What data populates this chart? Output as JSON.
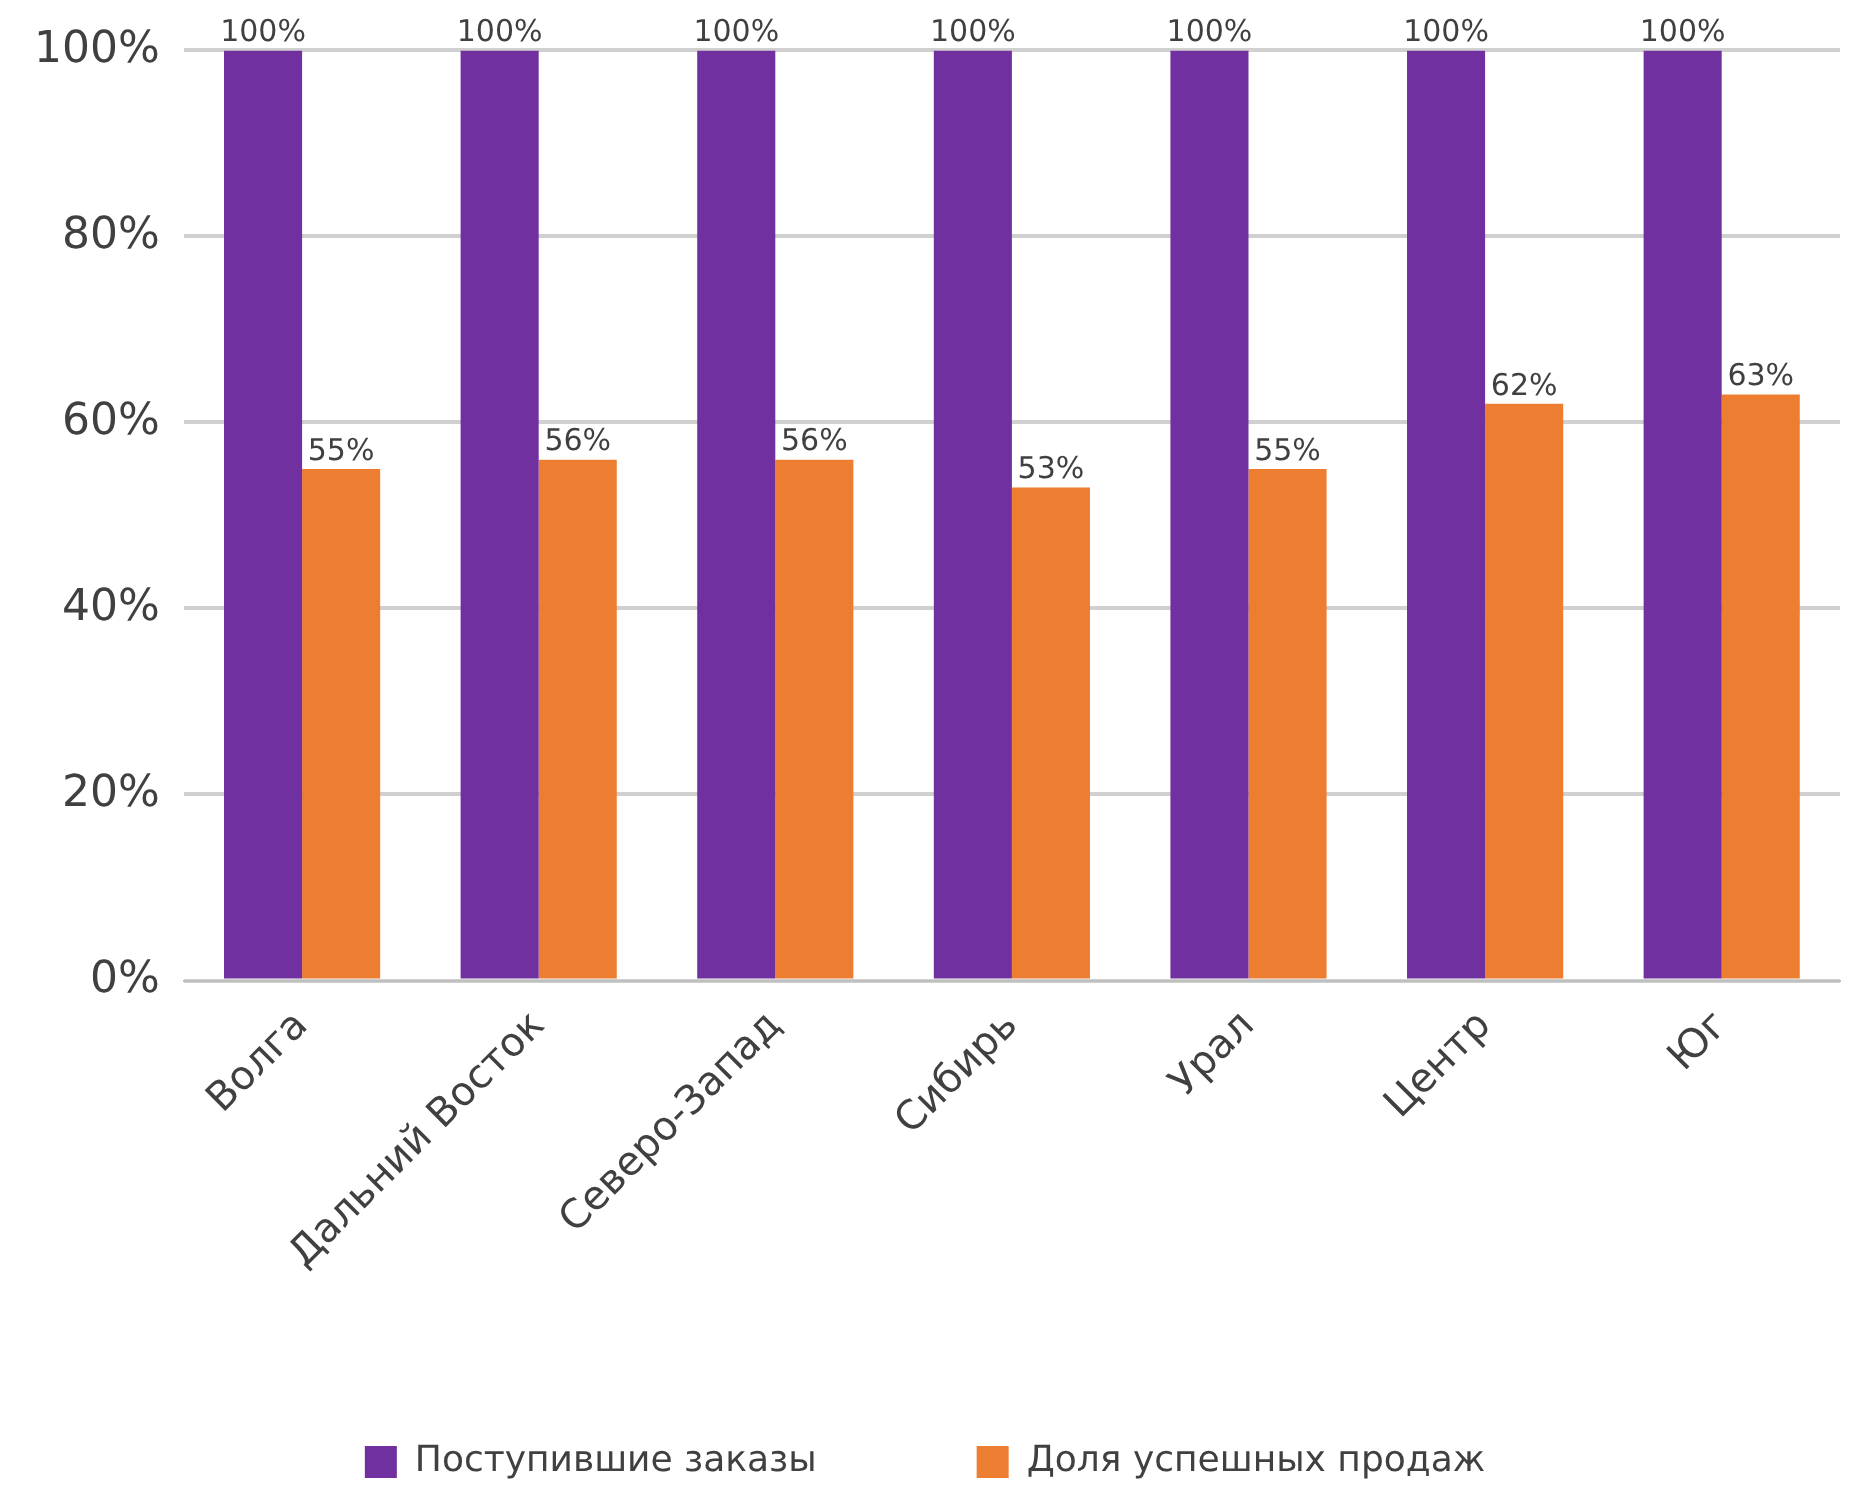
{
  "chart_data": {
    "type": "bar",
    "categories": [
      "Волга",
      "Дальний Восток",
      "Северо-Запад",
      "Сибирь",
      "Урал",
      "Центр",
      "Юг"
    ],
    "series": [
      {
        "name": "Поступившие заказы",
        "color": "#7030a0",
        "values": [
          100,
          100,
          100,
          100,
          100,
          100,
          100
        ],
        "value_labels": [
          "100%",
          "100%",
          "100%",
          "100%",
          "100%",
          "100%",
          "100%"
        ]
      },
      {
        "name": "Доля успешных продаж",
        "color": "#ed7d31",
        "values": [
          55,
          56,
          56,
          53,
          55,
          62,
          63
        ],
        "value_labels": [
          "55%",
          "56%",
          "56%",
          "53%",
          "55%",
          "62%",
          "63%"
        ]
      }
    ],
    "ylim": [
      0,
      100
    ],
    "yticks": [
      {
        "value": 0,
        "label": "0%"
      },
      {
        "value": 20,
        "label": "20%"
      },
      {
        "value": 40,
        "label": "40%"
      },
      {
        "value": 60,
        "label": "60%"
      },
      {
        "value": 80,
        "label": "80%"
      },
      {
        "value": 100,
        "label": "100%"
      }
    ],
    "grid": "y",
    "legend": "bottom"
  }
}
